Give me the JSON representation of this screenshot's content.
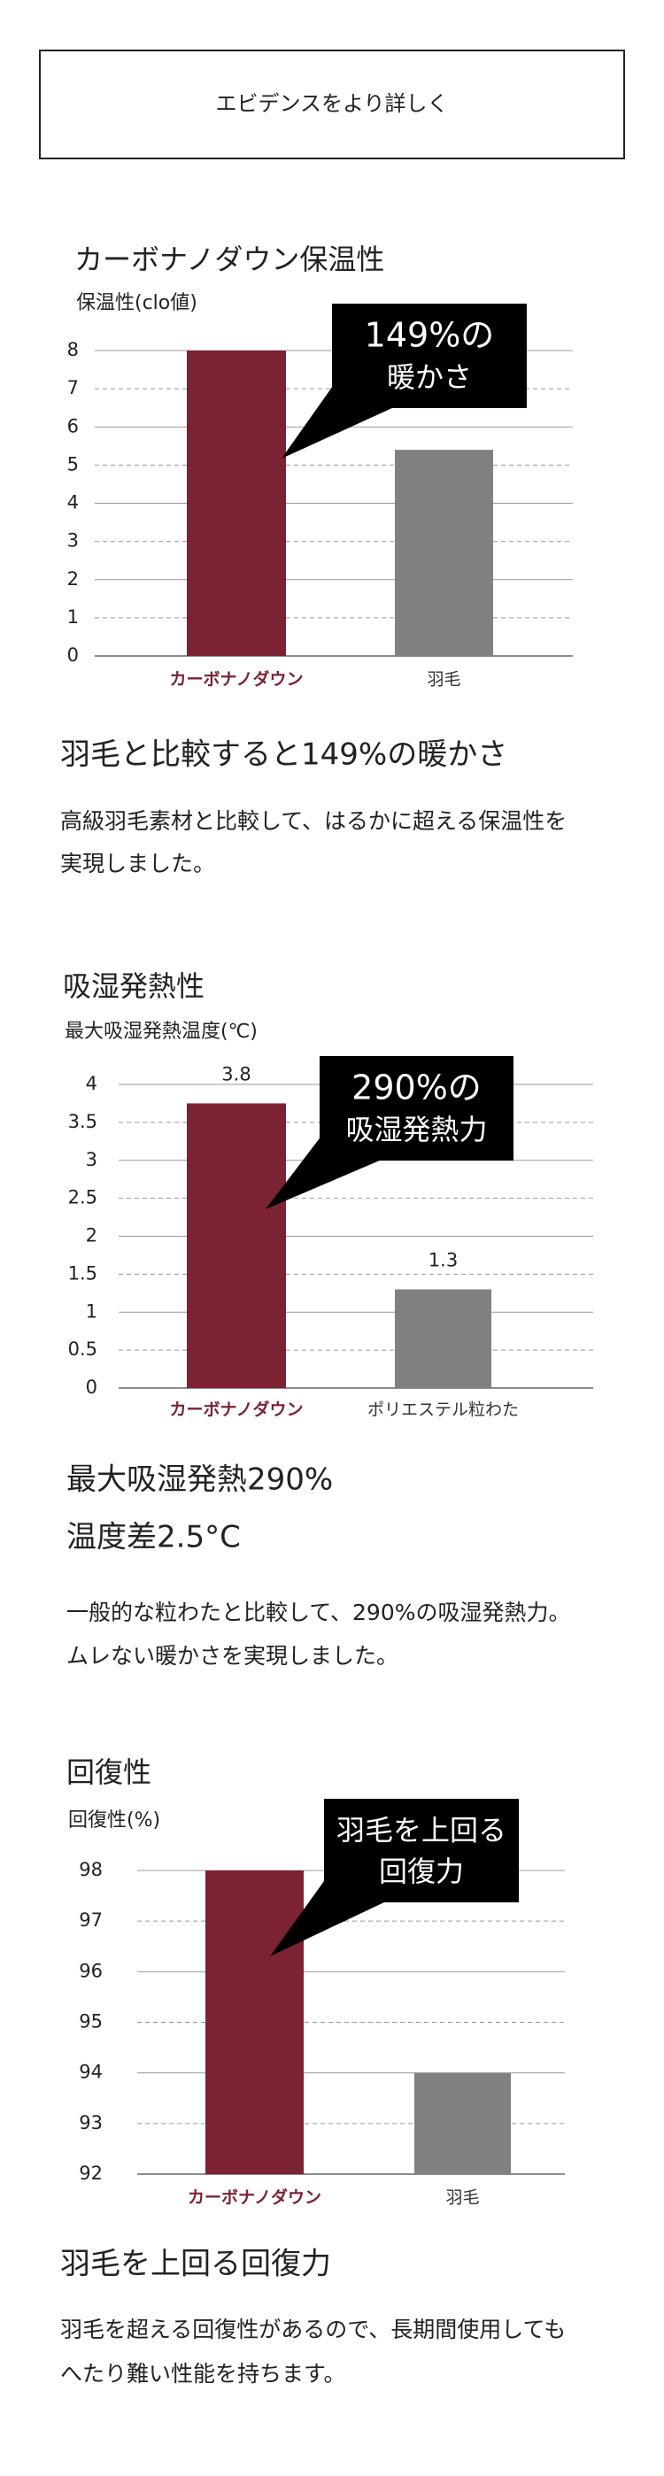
{
  "button": "エビデンスをより詳しく",
  "chart_data": [
    {
      "type": "bar",
      "title": "カーボナノダウン保温性",
      "y_label": "保温性(clo値)",
      "categories": [
        "カーボナノダウン",
        "羽毛"
      ],
      "values": [
        8,
        5.4
      ],
      "colors": [
        "#7b2233",
        "#808080"
      ],
      "ylim": [
        0,
        8
      ],
      "yticks": [
        0,
        1,
        2,
        3,
        4,
        5,
        6,
        7,
        8
      ],
      "grid": true,
      "callout": [
        "149%の",
        "暖かさ"
      ]
    },
    {
      "type": "bar",
      "title": "吸湿発熱性",
      "y_label": "最大吸湿発熱温度(℃)",
      "categories": [
        "カーボナノダウン",
        "ポリエステル粒わた"
      ],
      "values": [
        3.75,
        1.3
      ],
      "value_labels": [
        "3.8",
        "1.3"
      ],
      "colors": [
        "#7b2233",
        "#808080"
      ],
      "ylim": [
        0,
        4
      ],
      "yticks": [
        0,
        0.5,
        1,
        1.5,
        2,
        2.5,
        3,
        3.5,
        4
      ],
      "grid": true,
      "callout": [
        "290%の",
        "吸湿発熱力"
      ]
    },
    {
      "type": "bar",
      "title": "回復性",
      "y_label": "回復性(%)",
      "categories": [
        "カーボナノダウン",
        "羽毛"
      ],
      "values": [
        98,
        94
      ],
      "colors": [
        "#7b2233",
        "#808080"
      ],
      "ylim": [
        92,
        98
      ],
      "yticks": [
        92,
        93,
        94,
        95,
        96,
        97,
        98
      ],
      "grid": true,
      "callout": [
        "羽毛を上回る",
        "回復力"
      ]
    }
  ],
  "sections": [
    {
      "headings": [
        "羽毛と比較すると149%の暖かさ"
      ],
      "body": [
        "高級羽毛素材と比較して、はるかに超える保温性を",
        "実現しました。"
      ]
    },
    {
      "headings": [
        "最大吸湿発熱290%",
        "温度差2.5°C"
      ],
      "body": [
        "一般的な粒わたと比較して、290%の吸湿発熱力。",
        "ムレない暖かさを実現しました。"
      ]
    },
    {
      "headings": [
        "羽毛を上回る回復力"
      ],
      "body": [
        "羽毛を超える回復性があるので、長期間使用しても",
        "へたり難い性能を持ちます。"
      ]
    }
  ]
}
